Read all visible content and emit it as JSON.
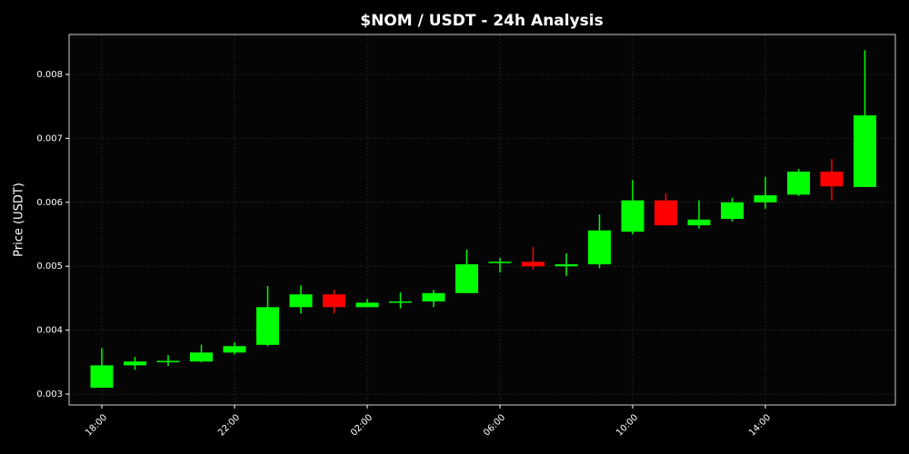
{
  "chart_data": {
    "type": "candlestick",
    "title": "$NOM / USDT - 24h Analysis",
    "y_label": "Price (USDT)",
    "categories": [
      "18:00",
      null,
      null,
      null,
      "22:00",
      null,
      null,
      null,
      "02:00",
      null,
      null,
      null,
      "06:00",
      null,
      null,
      null,
      "10:00",
      null,
      null,
      null,
      "14:00",
      null,
      null,
      null
    ],
    "open": [
      0.0031,
      0.00345,
      0.0035,
      0.00351,
      0.00365,
      0.00377,
      0.00436,
      0.00456,
      0.00436,
      0.00443,
      0.00445,
      0.00458,
      0.00505,
      0.00507,
      0.005,
      0.00503,
      0.00554,
      0.00603,
      0.00564,
      0.00574,
      0.006,
      0.00612,
      0.00648,
      0.00624
    ],
    "high": [
      0.00372,
      0.00358,
      0.00361,
      0.00377,
      0.00381,
      0.00469,
      0.0047,
      0.00463,
      0.00449,
      0.00459,
      0.00463,
      0.00526,
      0.00513,
      0.0053,
      0.0052,
      0.00581,
      0.00635,
      0.00614,
      0.00603,
      0.00607,
      0.0064,
      0.00652,
      0.00668,
      0.00838
    ],
    "low": [
      0.0031,
      0.00338,
      0.00344,
      0.0035,
      0.00362,
      0.00375,
      0.00426,
      0.00426,
      0.00436,
      0.00434,
      0.00436,
      0.00458,
      0.0049,
      0.00495,
      0.00485,
      0.00497,
      0.0055,
      0.00564,
      0.00559,
      0.0057,
      0.0059,
      0.0061,
      0.00603,
      0.00624
    ],
    "close": [
      0.00345,
      0.00351,
      0.00352,
      0.00365,
      0.00375,
      0.00436,
      0.00456,
      0.00436,
      0.00443,
      0.00445,
      0.00458,
      0.00503,
      0.00507,
      0.005,
      0.00503,
      0.00556,
      0.00603,
      0.00564,
      0.00573,
      0.006,
      0.00611,
      0.00648,
      0.00625,
      0.00736
    ],
    "up_color": "#00ff00",
    "down_color": "#ff0000",
    "ylim": [
      0.00283,
      0.008625
    ],
    "yticks": [
      0.003,
      0.004,
      0.005,
      0.006,
      0.007,
      0.008
    ],
    "grid": true
  }
}
